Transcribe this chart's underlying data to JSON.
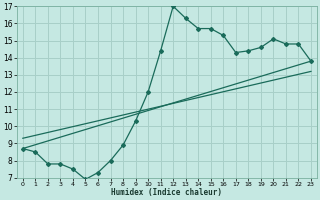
{
  "xlabel": "Humidex (Indice chaleur)",
  "xlim": [
    -0.5,
    23.5
  ],
  "ylim": [
    7,
    17
  ],
  "xticks": [
    0,
    1,
    2,
    3,
    4,
    5,
    6,
    7,
    8,
    9,
    10,
    11,
    12,
    13,
    14,
    15,
    16,
    17,
    18,
    19,
    20,
    21,
    22,
    23
  ],
  "yticks": [
    7,
    8,
    9,
    10,
    11,
    12,
    13,
    14,
    15,
    16,
    17
  ],
  "bg_color": "#c5e8e2",
  "grid_color": "#a8cfc8",
  "line_color": "#1a6b5a",
  "line1_x": [
    0,
    1,
    2,
    3,
    4,
    5,
    6,
    7,
    8,
    9,
    10,
    11,
    12,
    13,
    14,
    15,
    16,
    17,
    18,
    19,
    20,
    21,
    22,
    23
  ],
  "line1_y": [
    8.7,
    8.5,
    7.8,
    7.8,
    7.5,
    6.9,
    7.3,
    8.0,
    8.9,
    10.3,
    12.0,
    14.4,
    17.0,
    16.3,
    15.7,
    15.7,
    15.3,
    14.3,
    14.4,
    14.6,
    15.1,
    14.8,
    14.8,
    13.8
  ],
  "line2_x": [
    0,
    23
  ],
  "line2_y": [
    8.7,
    13.8
  ],
  "line3_x": [
    0,
    23
  ],
  "line3_y": [
    9.3,
    13.2
  ]
}
